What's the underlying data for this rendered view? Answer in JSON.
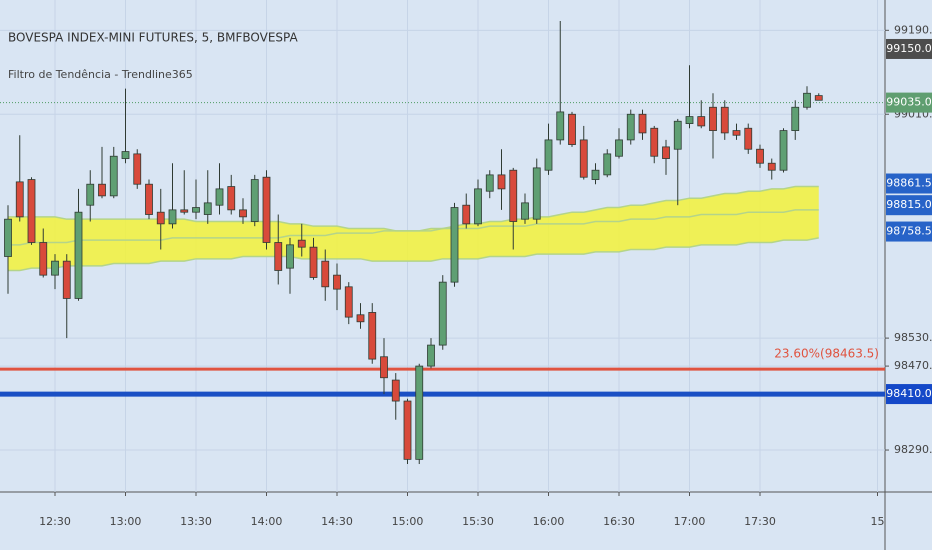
{
  "chart_data": {
    "type": "candlestick",
    "title": "BOVESPA INDEX-MINI FUTURES, 5, BMFBOVESPA",
    "subtitle": "Filtro de Tendência - Trendline365",
    "categories": [
      null,
      null,
      null,
      null,
      "12:30",
      null,
      null,
      null,
      null,
      null,
      "13:00",
      null,
      null,
      null,
      null,
      null,
      "13:30",
      null,
      null,
      null,
      null,
      null,
      "14:00",
      null,
      null,
      null,
      null,
      null,
      "14:30",
      null,
      null,
      null,
      null,
      null,
      "15:00",
      null,
      null,
      null,
      null,
      null,
      "15:30",
      null,
      null,
      null,
      null,
      null,
      "16:00",
      null,
      null,
      null,
      null,
      null,
      "16:30",
      null,
      null,
      null,
      null,
      null,
      "17:00",
      null,
      null,
      null,
      null,
      null,
      "17:30",
      null,
      null,
      null,
      null,
      null,
      null,
      null,
      null,
      null,
      "15"
    ],
    "open": [
      98705,
      98865,
      98870,
      98735,
      98665,
      98695,
      98615,
      98815,
      98860,
      98835,
      98915,
      98925,
      98860,
      98800,
      98775,
      98805,
      98800,
      98795,
      98815,
      98855,
      98805,
      98780,
      98875,
      98735,
      98680,
      98740,
      98725,
      98695,
      98665,
      98640,
      98580,
      98585,
      98490,
      98440,
      98395,
      98270,
      98470,
      98515,
      98650,
      98815,
      98775,
      98845,
      98880,
      98890,
      98785,
      98785,
      98890,
      98955,
      99010,
      98955,
      98870,
      98880,
      98920,
      98955,
      99010,
      98980,
      98940,
      98935,
      98990,
      99005,
      99025,
      99025,
      98975,
      98980,
      98935,
      98905,
      98890,
      98975,
      99025,
      99050,
      null,
      null,
      null,
      null,
      null
    ],
    "high": [
      98815,
      98965,
      98875,
      98765,
      98710,
      98710,
      98850,
      98890,
      98940,
      98940,
      99065,
      98935,
      98870,
      98850,
      98905,
      98890,
      98870,
      98890,
      98905,
      98880,
      98830,
      98880,
      98890,
      98795,
      98745,
      98775,
      98745,
      98720,
      98690,
      98650,
      98605,
      98605,
      98530,
      98455,
      98400,
      98475,
      98530,
      98665,
      98820,
      98840,
      98870,
      98890,
      98935,
      98895,
      98840,
      98915,
      98990,
      99210,
      99015,
      98985,
      98905,
      98935,
      98980,
      99020,
      99020,
      98985,
      98955,
      99000,
      99115,
      99040,
      99055,
      99040,
      98990,
      98990,
      98945,
      98915,
      98980,
      99040,
      99070,
      99055,
      null,
      null,
      null,
      null,
      null
    ],
    "low": [
      98625,
      98780,
      98730,
      98660,
      98635,
      98530,
      98610,
      98780,
      98830,
      98830,
      98905,
      98850,
      98785,
      98720,
      98765,
      98795,
      98785,
      98775,
      98795,
      98795,
      98775,
      98770,
      98720,
      98645,
      98625,
      98705,
      98655,
      98610,
      98590,
      98560,
      98550,
      98475,
      98410,
      98355,
      98260,
      98260,
      98465,
      98505,
      98640,
      98765,
      98770,
      98830,
      98805,
      98720,
      98775,
      98775,
      98880,
      98945,
      98940,
      98870,
      98860,
      98875,
      98915,
      98945,
      98955,
      98905,
      98880,
      98815,
      98980,
      98980,
      98915,
      98955,
      98955,
      98925,
      98895,
      98870,
      98885,
      98955,
      99020,
      99040,
      null,
      null,
      null,
      null,
      null
    ],
    "close": [
      98785,
      98790,
      98735,
      98665,
      98695,
      98615,
      98800,
      98860,
      98835,
      98920,
      98930,
      98860,
      98795,
      98775,
      98805,
      98800,
      98810,
      98820,
      98850,
      98805,
      98790,
      98870,
      98735,
      98675,
      98730,
      98725,
      98660,
      98640,
      98635,
      98575,
      98565,
      98485,
      98445,
      98395,
      98270,
      98470,
      98515,
      98650,
      98810,
      98775,
      98850,
      98880,
      98850,
      98780,
      98820,
      98895,
      98955,
      99015,
      98945,
      98875,
      98890,
      98925,
      98955,
      99010,
      98970,
      98920,
      98915,
      98995,
      99005,
      98985,
      98975,
      98970,
      98965,
      98935,
      98905,
      98890,
      98975,
      99025,
      99055,
      99040,
      null,
      null,
      null,
      null,
      null
    ],
    "up_color": "#5f9f73",
    "down_color": "#d84a3b",
    "ylim": [
      98200,
      99255
    ],
    "yticks": [
      {
        "value": 98290,
        "label": "98290.0"
      },
      {
        "value": 98470,
        "label": "98470.0"
      },
      {
        "value": 98530,
        "label": "98530.0"
      },
      {
        "value": 99010,
        "label": "99010.0"
      },
      {
        "value": 99190,
        "label": "99190.0"
      }
    ],
    "grid": true,
    "band": {
      "color": "#f2f23a",
      "line_color": "#b4d48a",
      "upper": [
        98790,
        98790,
        98790,
        98790,
        98790,
        98785,
        98785,
        98785,
        98785,
        98785,
        98785,
        98785,
        98785,
        98785,
        98785,
        98785,
        98780,
        98780,
        98780,
        98780,
        98780,
        98780,
        98780,
        98780,
        98775,
        98775,
        98770,
        98770,
        98770,
        98765,
        98765,
        98765,
        98765,
        98760,
        98760,
        98760,
        98765,
        98765,
        98770,
        98775,
        98775,
        98780,
        98780,
        98785,
        98785,
        98790,
        98790,
        98795,
        98800,
        98800,
        98805,
        98810,
        98810,
        98815,
        98815,
        98820,
        98825,
        98825,
        98830,
        98830,
        98835,
        98840,
        98840,
        98845,
        98845,
        98850,
        98850,
        98855,
        98855,
        98855,
        null,
        null,
        null,
        null,
        null
      ],
      "basis": [
        98730,
        98730,
        98735,
        98735,
        98735,
        98735,
        98740,
        98740,
        98740,
        98740,
        98740,
        98740,
        98740,
        98740,
        98745,
        98745,
        98745,
        98745,
        98745,
        98745,
        98745,
        98745,
        98745,
        98745,
        98750,
        98750,
        98750,
        98750,
        98755,
        98755,
        98755,
        98755,
        98760,
        98760,
        98760,
        98760,
        98760,
        98765,
        98765,
        98765,
        98765,
        98770,
        98770,
        98770,
        98770,
        98775,
        98775,
        98775,
        98775,
        98775,
        98780,
        98780,
        98780,
        98785,
        98785,
        98785,
        98790,
        98790,
        98790,
        98795,
        98795,
        98795,
        98795,
        98800,
        98800,
        98800,
        98800,
        98805,
        98805,
        98805,
        null,
        null,
        null,
        null,
        null
      ],
      "lower": [
        98675,
        98675,
        98680,
        98680,
        98680,
        98685,
        98685,
        98685,
        98685,
        98690,
        98690,
        98690,
        98690,
        98695,
        98695,
        98695,
        98700,
        98700,
        98700,
        98700,
        98705,
        98705,
        98705,
        98705,
        98705,
        98700,
        98700,
        98700,
        98700,
        98700,
        98700,
        98695,
        98695,
        98695,
        98695,
        98695,
        98695,
        98700,
        98700,
        98700,
        98700,
        98705,
        98705,
        98705,
        98705,
        98710,
        98710,
        98710,
        98710,
        98710,
        98715,
        98715,
        98715,
        98720,
        98720,
        98720,
        98725,
        98725,
        98725,
        98730,
        98730,
        98730,
        98730,
        98735,
        98735,
        98735,
        98740,
        98740,
        98740,
        98745,
        null,
        null,
        null,
        null,
        null
      ]
    },
    "levels": [
      {
        "value": 98463.5,
        "label": "23.60%(98463.5)",
        "color": "#e0533f"
      },
      {
        "value": 98410,
        "color": "#1a4fc4"
      }
    ],
    "price_line": {
      "value": 99035,
      "color": "#4e9a63"
    },
    "price_labels": [
      {
        "value": 99150,
        "label": "99150.0",
        "color": "#4d4d4d"
      },
      {
        "value": 99035,
        "label": "99035.0",
        "color": "#5f9e70"
      },
      {
        "value": 98861.5,
        "label": "98861.5",
        "color": "#2763c8"
      },
      {
        "value": 98815,
        "label": "98815.0",
        "color": "#2763c8"
      },
      {
        "value": 98758.5,
        "label": "98758.5",
        "color": "#2763c8"
      },
      {
        "value": 98410,
        "label": "98410.0",
        "color": "#1448c8"
      }
    ]
  }
}
